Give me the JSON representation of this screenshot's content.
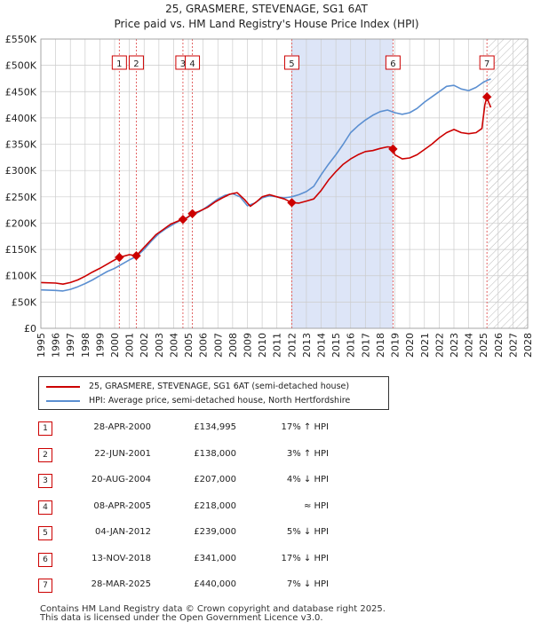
{
  "title_line1": "25, GRASMERE, STEVENAGE, SG1 6AT",
  "title_line2": "Price paid vs. HM Land Registry's House Price Index (HPI)",
  "chart_data": {
    "type": "line",
    "title": "25, GRASMERE, STEVENAGE, SG1 6AT — Price paid vs. HM Land Registry's House Price Index (HPI)",
    "x_range": [
      1995,
      2028
    ],
    "y_range": [
      0,
      550000
    ],
    "x_ticks": [
      "1995",
      "1996",
      "1997",
      "1998",
      "1999",
      "2000",
      "2001",
      "2002",
      "2003",
      "2004",
      "2005",
      "2006",
      "2007",
      "2008",
      "2009",
      "2010",
      "2011",
      "2012",
      "2013",
      "2014",
      "2015",
      "2016",
      "2017",
      "2018",
      "2019",
      "2020",
      "2021",
      "2022",
      "2023",
      "2024",
      "2025",
      "2026",
      "2027",
      "2028"
    ],
    "y_ticks": [
      {
        "value": 0,
        "label": "£0"
      },
      {
        "value": 50000,
        "label": "£50K"
      },
      {
        "value": 100000,
        "label": "£100K"
      },
      {
        "value": 150000,
        "label": "£150K"
      },
      {
        "value": 200000,
        "label": "£200K"
      },
      {
        "value": 250000,
        "label": "£250K"
      },
      {
        "value": 300000,
        "label": "£300K"
      },
      {
        "value": 350000,
        "label": "£350K"
      },
      {
        "value": 400000,
        "label": "£400K"
      },
      {
        "value": 450000,
        "label": "£450K"
      },
      {
        "value": 500000,
        "label": "£500K"
      },
      {
        "value": 550000,
        "label": "£550K"
      }
    ],
    "shaded_range": [
      2012.01,
      2018.87
    ],
    "future_from": 2025.3,
    "series": [
      {
        "name": "25, GRASMERE, STEVENAGE, SG1 6AT (semi-detached house)",
        "color": "#cc0000",
        "points": [
          [
            1995.0,
            87000
          ],
          [
            1996.0,
            86000
          ],
          [
            1996.5,
            84000
          ],
          [
            1997.0,
            87000
          ],
          [
            1997.5,
            92000
          ],
          [
            1998.0,
            99000
          ],
          [
            1998.5,
            107000
          ],
          [
            1999.0,
            114000
          ],
          [
            1999.5,
            122000
          ],
          [
            2000.0,
            130000
          ],
          [
            2000.32,
            134995
          ],
          [
            2000.6,
            137000
          ],
          [
            2001.0,
            140000
          ],
          [
            2001.47,
            138000
          ],
          [
            2001.8,
            148000
          ],
          [
            2002.3,
            163000
          ],
          [
            2002.8,
            178000
          ],
          [
            2003.3,
            188000
          ],
          [
            2003.8,
            198000
          ],
          [
            2004.3,
            204000
          ],
          [
            2004.63,
            207000
          ],
          [
            2004.9,
            210000
          ],
          [
            2005.27,
            218000
          ],
          [
            2005.7,
            222000
          ],
          [
            2006.3,
            230000
          ],
          [
            2006.8,
            240000
          ],
          [
            2007.3,
            248000
          ],
          [
            2007.8,
            255000
          ],
          [
            2008.3,
            258000
          ],
          [
            2008.8,
            245000
          ],
          [
            2009.2,
            232000
          ],
          [
            2009.6,
            240000
          ],
          [
            2010.0,
            250000
          ],
          [
            2010.5,
            254000
          ],
          [
            2011.0,
            250000
          ],
          [
            2011.5,
            246000
          ],
          [
            2012.01,
            239000
          ],
          [
            2012.5,
            238000
          ],
          [
            2013.0,
            242000
          ],
          [
            2013.5,
            246000
          ],
          [
            2014.0,
            262000
          ],
          [
            2014.5,
            282000
          ],
          [
            2015.0,
            298000
          ],
          [
            2015.5,
            312000
          ],
          [
            2016.0,
            322000
          ],
          [
            2016.5,
            330000
          ],
          [
            2017.0,
            336000
          ],
          [
            2017.5,
            338000
          ],
          [
            2018.0,
            342000
          ],
          [
            2018.5,
            345000
          ],
          [
            2018.86,
            344000
          ],
          [
            2018.87,
            341000
          ],
          [
            2019.0,
            330000
          ],
          [
            2019.5,
            322000
          ],
          [
            2020.0,
            324000
          ],
          [
            2020.5,
            330000
          ],
          [
            2021.0,
            340000
          ],
          [
            2021.5,
            350000
          ],
          [
            2022.0,
            362000
          ],
          [
            2022.5,
            372000
          ],
          [
            2023.0,
            378000
          ],
          [
            2023.5,
            372000
          ],
          [
            2024.0,
            370000
          ],
          [
            2024.5,
            372000
          ],
          [
            2024.9,
            380000
          ],
          [
            2025.1,
            425000
          ],
          [
            2025.24,
            440000
          ],
          [
            2025.35,
            430000
          ],
          [
            2025.5,
            420000
          ]
        ]
      },
      {
        "name": "HPI: Average price, semi-detached house, North Hertfordshire",
        "color": "#5b8fd1",
        "points": [
          [
            1995.0,
            73000
          ],
          [
            1996.0,
            72000
          ],
          [
            1996.5,
            71000
          ],
          [
            1997.0,
            74000
          ],
          [
            1997.5,
            79000
          ],
          [
            1998.0,
            85000
          ],
          [
            1998.5,
            92000
          ],
          [
            1999.0,
            100000
          ],
          [
            1999.5,
            108000
          ],
          [
            2000.0,
            114000
          ],
          [
            2000.5,
            122000
          ],
          [
            2001.0,
            130000
          ],
          [
            2001.5,
            137000
          ],
          [
            2002.0,
            150000
          ],
          [
            2002.5,
            166000
          ],
          [
            2003.0,
            180000
          ],
          [
            2003.5,
            190000
          ],
          [
            2004.0,
            198000
          ],
          [
            2004.5,
            206000
          ],
          [
            2005.0,
            212000
          ],
          [
            2005.5,
            218000
          ],
          [
            2006.0,
            226000
          ],
          [
            2006.5,
            236000
          ],
          [
            2007.0,
            246000
          ],
          [
            2007.5,
            253000
          ],
          [
            2008.0,
            256000
          ],
          [
            2008.5,
            250000
          ],
          [
            2009.0,
            233000
          ],
          [
            2009.5,
            238000
          ],
          [
            2010.0,
            248000
          ],
          [
            2010.5,
            252000
          ],
          [
            2011.0,
            250000
          ],
          [
            2011.5,
            248000
          ],
          [
            2012.0,
            250000
          ],
          [
            2012.5,
            254000
          ],
          [
            2013.0,
            260000
          ],
          [
            2013.5,
            270000
          ],
          [
            2014.0,
            292000
          ],
          [
            2014.5,
            312000
          ],
          [
            2015.0,
            330000
          ],
          [
            2015.5,
            350000
          ],
          [
            2016.0,
            372000
          ],
          [
            2016.5,
            385000
          ],
          [
            2017.0,
            396000
          ],
          [
            2017.5,
            405000
          ],
          [
            2018.0,
            412000
          ],
          [
            2018.5,
            415000
          ],
          [
            2019.0,
            410000
          ],
          [
            2019.5,
            407000
          ],
          [
            2020.0,
            410000
          ],
          [
            2020.5,
            418000
          ],
          [
            2021.0,
            430000
          ],
          [
            2021.5,
            440000
          ],
          [
            2022.0,
            450000
          ],
          [
            2022.5,
            460000
          ],
          [
            2023.0,
            462000
          ],
          [
            2023.5,
            455000
          ],
          [
            2024.0,
            452000
          ],
          [
            2024.5,
            458000
          ],
          [
            2025.0,
            468000
          ],
          [
            2025.3,
            472000
          ],
          [
            2025.5,
            474000
          ]
        ]
      }
    ],
    "sales": [
      {
        "id": "1",
        "date": "28-APR-2000",
        "year": 2000.32,
        "price": 134995,
        "price_label": "£134,995",
        "hpi_label": "17% ↑ HPI"
      },
      {
        "id": "2",
        "date": "22-JUN-2001",
        "year": 2001.47,
        "price": 138000,
        "price_label": "£138,000",
        "hpi_label": "3% ↑ HPI"
      },
      {
        "id": "3",
        "date": "20-AUG-2004",
        "year": 2004.63,
        "price": 207000,
        "price_label": "£207,000",
        "hpi_label": "4% ↓ HPI"
      },
      {
        "id": "4",
        "date": "08-APR-2005",
        "year": 2005.27,
        "price": 218000,
        "price_label": "£218,000",
        "hpi_label": "≈ HPI"
      },
      {
        "id": "5",
        "date": "04-JAN-2012",
        "year": 2012.01,
        "price": 239000,
        "price_label": "£239,000",
        "hpi_label": "5% ↓ HPI"
      },
      {
        "id": "6",
        "date": "13-NOV-2018",
        "year": 2018.87,
        "price": 341000,
        "price_label": "£341,000",
        "hpi_label": "17% ↓ HPI"
      },
      {
        "id": "7",
        "date": "28-MAR-2025",
        "year": 2025.24,
        "price": 440000,
        "price_label": "£440,000",
        "hpi_label": "7% ↓ HPI"
      }
    ]
  },
  "legend": {
    "property_label": "25, GRASMERE, STEVENAGE, SG1 6AT (semi-detached house)",
    "hpi_label": "HPI: Average price, semi-detached house, North Hertfordshire"
  },
  "footer": {
    "line1": "Contains HM Land Registry data © Crown copyright and database right 2025.",
    "line2": "This data is licensed under the Open Government Licence v3.0."
  },
  "colors": {
    "property": "#cc0000",
    "hpi": "#5b8fd1",
    "shade": "#dde5f7",
    "grid": "#cccccc"
  }
}
